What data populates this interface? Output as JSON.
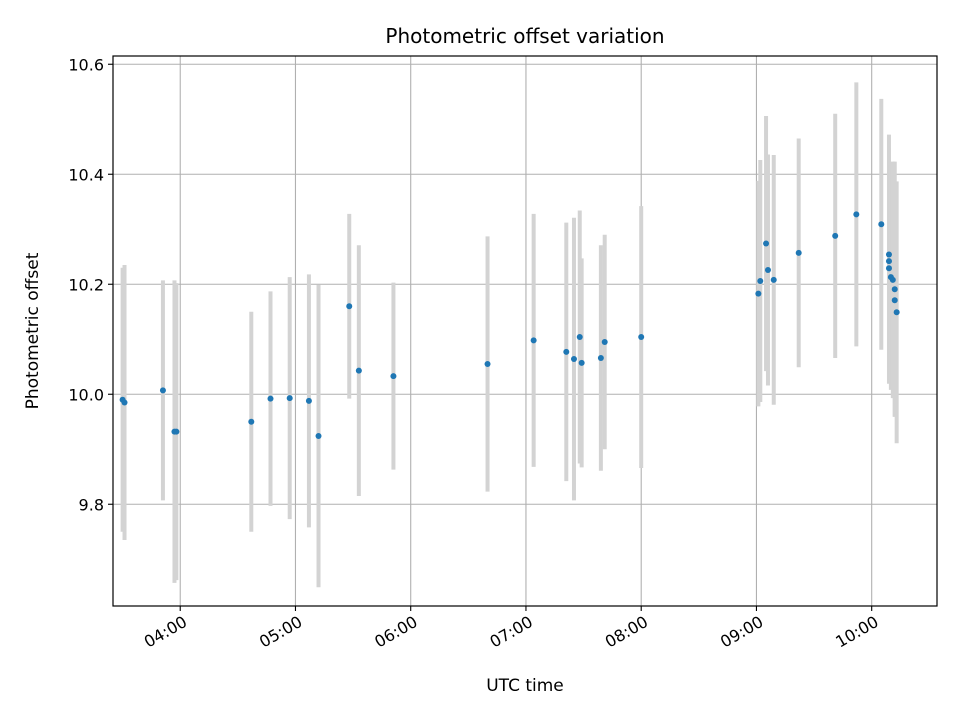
{
  "chart_data": {
    "type": "scatter",
    "title": "Photometric offset variation",
    "xlabel": "UTC time",
    "ylabel": "Photometric offset",
    "x_tick_labels": [
      "04:00",
      "05:00",
      "06:00",
      "07:00",
      "08:00",
      "09:00",
      "10:00"
    ],
    "y_tick_labels": [
      "9.8",
      "10.0",
      "10.2",
      "10.4",
      "10.6"
    ],
    "grid": true,
    "point_color": "#1f77b4",
    "errorbar_color": "#d3d3d3",
    "xlim": [
      "03:25",
      "10:34"
    ],
    "ylim": [
      9.615,
      10.615
    ],
    "points": [
      {
        "x": "03:30",
        "y": 9.99,
        "err": 0.24
      },
      {
        "x": "03:31",
        "y": 9.985,
        "err": 0.25
      },
      {
        "x": "03:51",
        "y": 10.007,
        "err": 0.2
      },
      {
        "x": "03:57",
        "y": 9.932,
        "err": 0.275
      },
      {
        "x": "03:58",
        "y": 9.932,
        "err": 0.27
      },
      {
        "x": "04:37",
        "y": 9.95,
        "err": 0.2
      },
      {
        "x": "04:47",
        "y": 9.992,
        "err": 0.195
      },
      {
        "x": "04:57",
        "y": 9.993,
        "err": 0.22
      },
      {
        "x": "05:07",
        "y": 9.988,
        "err": 0.23
      },
      {
        "x": "05:12",
        "y": 9.924,
        "err": 0.275
      },
      {
        "x": "05:28",
        "y": 10.16,
        "err": 0.168
      },
      {
        "x": "05:33",
        "y": 10.043,
        "err": 0.228
      },
      {
        "x": "05:51",
        "y": 10.033,
        "err": 0.17
      },
      {
        "x": "06:40",
        "y": 10.055,
        "err": 0.232
      },
      {
        "x": "07:04",
        "y": 10.098,
        "err": 0.23
      },
      {
        "x": "07:21",
        "y": 10.077,
        "err": 0.235
      },
      {
        "x": "07:25",
        "y": 10.064,
        "err": 0.257
      },
      {
        "x": "07:28",
        "y": 10.104,
        "err": 0.23
      },
      {
        "x": "07:29",
        "y": 10.057,
        "err": 0.19
      },
      {
        "x": "07:39",
        "y": 10.066,
        "err": 0.205
      },
      {
        "x": "07:41",
        "y": 10.095,
        "err": 0.195
      },
      {
        "x": "08:00",
        "y": 10.104,
        "err": 0.238
      },
      {
        "x": "09:01",
        "y": 10.183,
        "err": 0.205
      },
      {
        "x": "09:02",
        "y": 10.206,
        "err": 0.22
      },
      {
        "x": "09:05",
        "y": 10.274,
        "err": 0.232
      },
      {
        "x": "09:06",
        "y": 10.226,
        "err": 0.21
      },
      {
        "x": "09:09",
        "y": 10.208,
        "err": 0.227
      },
      {
        "x": "09:22",
        "y": 10.257,
        "err": 0.208
      },
      {
        "x": "09:41",
        "y": 10.288,
        "err": 0.222
      },
      {
        "x": "09:52",
        "y": 10.327,
        "err": 0.24
      },
      {
        "x": "10:05",
        "y": 10.309,
        "err": 0.228
      },
      {
        "x": "10:09",
        "y": 10.254,
        "err": 0.218
      },
      {
        "x": "10:09",
        "y": 10.242,
        "err": 0.205
      },
      {
        "x": "10:09",
        "y": 10.229,
        "err": 0.21
      },
      {
        "x": "10:10",
        "y": 10.213,
        "err": 0.205
      },
      {
        "x": "10:11",
        "y": 10.208,
        "err": 0.215
      },
      {
        "x": "10:12",
        "y": 10.191,
        "err": 0.232
      },
      {
        "x": "10:12",
        "y": 10.171,
        "err": 0.212
      },
      {
        "x": "10:13",
        "y": 10.149,
        "err": 0.238
      }
    ]
  }
}
